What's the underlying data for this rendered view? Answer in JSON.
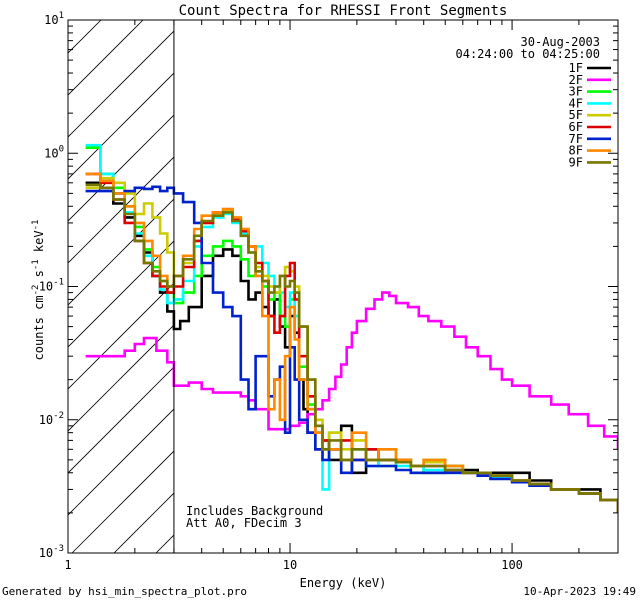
{
  "chart_data": {
    "type": "line",
    "title": "Count Spectra for RHESSI Front Segments",
    "xlabel": "Energy (keV)",
    "ylabel": "counts cm^-2 s^-1 keV^-1",
    "xscale": "log",
    "yscale": "log",
    "xlim": [
      1,
      300
    ],
    "ylim": [
      0.001,
      10
    ],
    "xticks": [
      {
        "value": 1,
        "label": "1"
      },
      {
        "value": 10,
        "label": "10"
      },
      {
        "value": 100,
        "label": "100"
      }
    ],
    "yticks": [
      {
        "value": 0.001,
        "label": "10^-3",
        "base": "10",
        "exp": "-3"
      },
      {
        "value": 0.01,
        "label": "10^-2",
        "base": "10",
        "exp": "-2"
      },
      {
        "value": 0.1,
        "label": "10^-1",
        "base": "10",
        "exp": "-1"
      },
      {
        "value": 1,
        "label": "10^0",
        "base": "10",
        "exp": "0"
      },
      {
        "value": 10,
        "label": "10^1",
        "base": "10",
        "exp": "1"
      }
    ],
    "shaded_region": {
      "x_from": 1,
      "x_to": 3,
      "pattern": "diagonal-hatch"
    },
    "legend_position": "top-right",
    "date": "30-Aug-2003",
    "time_range": "04:24:00 to 04:25:00",
    "annotations": [
      "Includes Background",
      "Att A0, FDecim 3"
    ],
    "series": [
      {
        "name": "1F",
        "color": "#000000",
        "x": [
          1.2,
          1.4,
          1.6,
          1.8,
          2.0,
          2.2,
          2.4,
          2.6,
          2.8,
          3.0,
          3.2,
          3.5,
          4.0,
          4.5,
          5.0,
          5.5,
          6.0,
          6.5,
          7.0,
          7.5,
          8.0,
          8.5,
          9.0,
          9.5,
          10,
          10.5,
          11,
          11.5,
          12,
          13,
          14,
          15,
          17,
          19,
          22,
          25,
          30,
          35,
          40,
          50,
          60,
          70,
          80,
          100,
          120,
          150,
          200,
          250,
          300
        ],
        "y": [
          0.6,
          0.55,
          0.42,
          0.33,
          0.24,
          0.18,
          0.12,
          0.09,
          0.065,
          0.048,
          0.055,
          0.07,
          0.12,
          0.17,
          0.19,
          0.17,
          0.11,
          0.08,
          0.09,
          0.07,
          0.06,
          0.08,
          0.05,
          0.035,
          0.06,
          0.045,
          0.02,
          0.012,
          0.008,
          0.006,
          0.007,
          0.005,
          0.009,
          0.004,
          0.006,
          0.005,
          0.005,
          0.0045,
          0.004,
          0.0045,
          0.0042,
          0.004,
          0.004,
          0.004,
          0.0035,
          0.003,
          0.003,
          0.0025,
          0.002
        ]
      },
      {
        "name": "2F",
        "color": "#ff00ff",
        "x": [
          1.2,
          1.5,
          1.8,
          2.0,
          2.2,
          2.5,
          2.8,
          3.0,
          3.5,
          4.0,
          4.5,
          5.0,
          5.5,
          6.0,
          6.5,
          7.0,
          8.0,
          9.0,
          10,
          11,
          12,
          13,
          14,
          15,
          16,
          17,
          18,
          19,
          20,
          22,
          24,
          26,
          28,
          30,
          34,
          38,
          42,
          48,
          55,
          62,
          70,
          80,
          90,
          100,
          120,
          150,
          180,
          220,
          260,
          300
        ],
        "y": [
          0.03,
          0.03,
          0.033,
          0.037,
          0.041,
          0.033,
          0.027,
          0.018,
          0.019,
          0.017,
          0.016,
          0.016,
          0.016,
          0.015,
          0.014,
          0.012,
          0.0085,
          0.0085,
          0.009,
          0.0095,
          0.011,
          0.012,
          0.014,
          0.017,
          0.021,
          0.026,
          0.035,
          0.045,
          0.055,
          0.068,
          0.08,
          0.09,
          0.085,
          0.075,
          0.07,
          0.06,
          0.055,
          0.05,
          0.042,
          0.035,
          0.03,
          0.024,
          0.02,
          0.018,
          0.015,
          0.013,
          0.011,
          0.009,
          0.0075,
          0.006
        ]
      },
      {
        "name": "3F",
        "color": "#00ff00",
        "x": [
          1.2,
          1.4,
          1.6,
          1.8,
          2.0,
          2.2,
          2.4,
          2.6,
          2.8,
          3.0,
          3.3,
          3.7,
          4.0,
          4.5,
          5.0,
          5.5,
          6.0,
          6.5,
          7.0,
          7.5,
          8.0,
          8.5,
          9.0,
          9.5,
          10,
          10.5,
          11,
          12,
          13,
          14,
          15,
          17,
          19,
          22,
          25,
          30,
          35,
          40,
          50,
          60,
          70,
          80,
          100,
          120,
          150,
          200,
          250,
          300
        ],
        "y": [
          1.1,
          0.7,
          0.55,
          0.4,
          0.28,
          0.19,
          0.14,
          0.11,
          0.09,
          0.075,
          0.09,
          0.12,
          0.17,
          0.2,
          0.22,
          0.2,
          0.16,
          0.12,
          0.13,
          0.1,
          0.08,
          0.09,
          0.06,
          0.05,
          0.08,
          0.06,
          0.025,
          0.013,
          0.009,
          0.006,
          0.008,
          0.005,
          0.006,
          0.005,
          0.0045,
          0.005,
          0.004,
          0.005,
          0.0045,
          0.004,
          0.004,
          0.0038,
          0.0035,
          0.0032,
          0.003,
          0.0028,
          0.0025,
          0.002
        ]
      },
      {
        "name": "4F",
        "color": "#00ffff",
        "x": [
          1.2,
          1.4,
          1.6,
          1.8,
          2.0,
          2.2,
          2.4,
          2.6,
          2.8,
          3.0,
          3.3,
          3.7,
          4.0,
          4.5,
          5.0,
          5.5,
          6.0,
          6.5,
          7.0,
          7.5,
          8.0,
          8.5,
          9.0,
          9.5,
          10,
          10.5,
          11,
          12,
          13,
          14,
          15,
          17,
          19,
          22,
          25,
          30,
          35,
          40,
          50,
          60,
          70,
          80,
          100,
          120,
          150,
          200,
          250,
          300
        ],
        "y": [
          1.15,
          0.7,
          0.5,
          0.36,
          0.25,
          0.17,
          0.12,
          0.095,
          0.075,
          0.08,
          0.11,
          0.2,
          0.28,
          0.33,
          0.35,
          0.3,
          0.25,
          0.18,
          0.2,
          0.15,
          0.12,
          0.1,
          0.09,
          0.07,
          0.09,
          0.06,
          0.03,
          0.015,
          0.008,
          0.003,
          0.006,
          0.005,
          0.006,
          0.0045,
          0.005,
          0.0045,
          0.0045,
          0.0042,
          0.004,
          0.004,
          0.004,
          0.0037,
          0.0035,
          0.0032,
          0.003,
          0.0028,
          0.0025,
          0.002
        ]
      },
      {
        "name": "5F",
        "color": "#cccc00",
        "x": [
          1.2,
          1.4,
          1.6,
          1.8,
          2.0,
          2.2,
          2.4,
          2.6,
          2.8,
          3.0,
          3.3,
          3.7,
          4.0,
          4.5,
          5.0,
          5.5,
          6.0,
          6.5,
          7.0,
          7.5,
          8.0,
          8.5,
          9.0,
          9.5,
          10,
          10.5,
          11,
          12,
          13,
          14,
          15,
          17,
          19,
          22,
          25,
          30,
          35,
          40,
          50,
          60,
          70,
          80,
          100,
          120,
          150,
          200,
          250,
          300
        ],
        "y": [
          0.55,
          0.65,
          0.6,
          0.5,
          0.35,
          0.42,
          0.33,
          0.25,
          0.18,
          0.12,
          0.15,
          0.22,
          0.3,
          0.35,
          0.37,
          0.32,
          0.26,
          0.2,
          0.14,
          0.12,
          0.1,
          0.09,
          0.12,
          0.14,
          0.13,
          0.1,
          0.05,
          0.02,
          0.01,
          0.007,
          0.008,
          0.006,
          0.007,
          0.005,
          0.006,
          0.005,
          0.0045,
          0.0048,
          0.0045,
          0.004,
          0.004,
          0.0038,
          0.0035,
          0.0033,
          0.003,
          0.0028,
          0.0025,
          0.002
        ]
      },
      {
        "name": "6F",
        "color": "#dd0000",
        "x": [
          1.2,
          1.4,
          1.6,
          1.8,
          2.0,
          2.2,
          2.4,
          2.6,
          2.8,
          3.0,
          3.3,
          3.7,
          4.0,
          4.5,
          5.0,
          5.5,
          6.0,
          6.5,
          7.0,
          7.5,
          8.0,
          8.5,
          9.0,
          9.5,
          10,
          10.5,
          11,
          12,
          13,
          14,
          15,
          17,
          19,
          22,
          25,
          30,
          35,
          40,
          50,
          60,
          70,
          80,
          100,
          120,
          150,
          200,
          250,
          300
        ],
        "y": [
          0.7,
          0.6,
          0.45,
          0.3,
          0.22,
          0.15,
          0.12,
          0.1,
          0.09,
          0.1,
          0.14,
          0.22,
          0.3,
          0.36,
          0.38,
          0.32,
          0.26,
          0.2,
          0.15,
          0.11,
          0.06,
          0.045,
          0.06,
          0.12,
          0.15,
          0.08,
          0.03,
          0.015,
          0.008,
          0.007,
          0.006,
          0.007,
          0.005,
          0.006,
          0.005,
          0.005,
          0.0045,
          0.0045,
          0.0042,
          0.004,
          0.004,
          0.0038,
          0.0035,
          0.0033,
          0.003,
          0.0028,
          0.0025,
          0.002
        ]
      },
      {
        "name": "7F",
        "color": "#0022cc",
        "x": [
          1.2,
          1.4,
          1.6,
          1.8,
          2.0,
          2.2,
          2.4,
          2.6,
          2.8,
          3.0,
          3.3,
          3.7,
          4.0,
          4.5,
          5.0,
          5.5,
          6.0,
          6.5,
          7.0,
          7.5,
          8.0,
          8.5,
          9.0,
          9.5,
          10,
          10.5,
          11,
          12,
          13,
          14,
          15,
          17,
          19,
          22,
          25,
          30,
          35,
          40,
          50,
          60,
          70,
          80,
          100,
          120,
          150,
          200,
          250,
          300
        ],
        "y": [
          0.52,
          0.52,
          0.5,
          0.52,
          0.55,
          0.54,
          0.56,
          0.52,
          0.55,
          0.5,
          0.43,
          0.3,
          0.15,
          0.09,
          0.07,
          0.06,
          0.02,
          0.012,
          0.03,
          0.03,
          0.015,
          0.02,
          0.025,
          0.008,
          0.035,
          0.02,
          0.01,
          0.008,
          0.006,
          0.005,
          0.006,
          0.004,
          0.005,
          0.0045,
          0.0045,
          0.0042,
          0.004,
          0.004,
          0.004,
          0.004,
          0.0038,
          0.0036,
          0.0034,
          0.0032,
          0.003,
          0.0028,
          0.0025,
          0.0022
        ]
      },
      {
        "name": "8F",
        "color": "#ff8800",
        "x": [
          1.2,
          1.4,
          1.6,
          1.8,
          2.0,
          2.2,
          2.4,
          2.6,
          2.8,
          3.0,
          3.3,
          3.7,
          4.0,
          4.5,
          5.0,
          5.5,
          6.0,
          6.5,
          7.0,
          7.5,
          8.0,
          8.5,
          9.0,
          9.5,
          10,
          10.5,
          11,
          12,
          13,
          14,
          15,
          17,
          19,
          22,
          25,
          30,
          35,
          40,
          50,
          60,
          70,
          80,
          100,
          120,
          150,
          200,
          250,
          300
        ],
        "y": [
          0.7,
          0.62,
          0.5,
          0.4,
          0.3,
          0.22,
          0.17,
          0.12,
          0.1,
          0.12,
          0.17,
          0.27,
          0.34,
          0.36,
          0.38,
          0.33,
          0.27,
          0.2,
          0.12,
          0.06,
          0.012,
          0.02,
          0.01,
          0.03,
          0.07,
          0.04,
          0.02,
          0.012,
          0.008,
          0.006,
          0.006,
          0.005,
          0.008,
          0.005,
          0.006,
          0.005,
          0.0045,
          0.005,
          0.0045,
          0.004,
          0.004,
          0.0038,
          0.0035,
          0.0033,
          0.003,
          0.0028,
          0.0025,
          0.002
        ]
      },
      {
        "name": "9F",
        "color": "#777700",
        "x": [
          1.2,
          1.4,
          1.6,
          1.8,
          2.0,
          2.2,
          2.4,
          2.6,
          2.8,
          3.0,
          3.3,
          3.7,
          4.0,
          4.5,
          5.0,
          5.5,
          6.0,
          6.5,
          7.0,
          7.5,
          8.0,
          8.5,
          9.0,
          9.5,
          10,
          10.5,
          11,
          12,
          13,
          14,
          15,
          17,
          19,
          22,
          25,
          30,
          35,
          40,
          50,
          60,
          70,
          80,
          100,
          120,
          150,
          200,
          250,
          300
        ],
        "y": [
          0.58,
          0.55,
          0.45,
          0.35,
          0.22,
          0.15,
          0.13,
          0.11,
          0.1,
          0.12,
          0.16,
          0.24,
          0.31,
          0.34,
          0.36,
          0.31,
          0.24,
          0.18,
          0.13,
          0.11,
          0.09,
          0.1,
          0.12,
          0.1,
          0.11,
          0.09,
          0.05,
          0.02,
          0.009,
          0.006,
          0.007,
          0.005,
          0.006,
          0.005,
          0.005,
          0.0048,
          0.0045,
          0.0045,
          0.0042,
          0.004,
          0.004,
          0.0038,
          0.0035,
          0.0033,
          0.003,
          0.0028,
          0.0025,
          0.002
        ]
      }
    ]
  },
  "footer": {
    "generated_by": "Generated by hsi_min_spectra_plot.pro",
    "timestamp": "10-Apr-2023 19:49"
  }
}
